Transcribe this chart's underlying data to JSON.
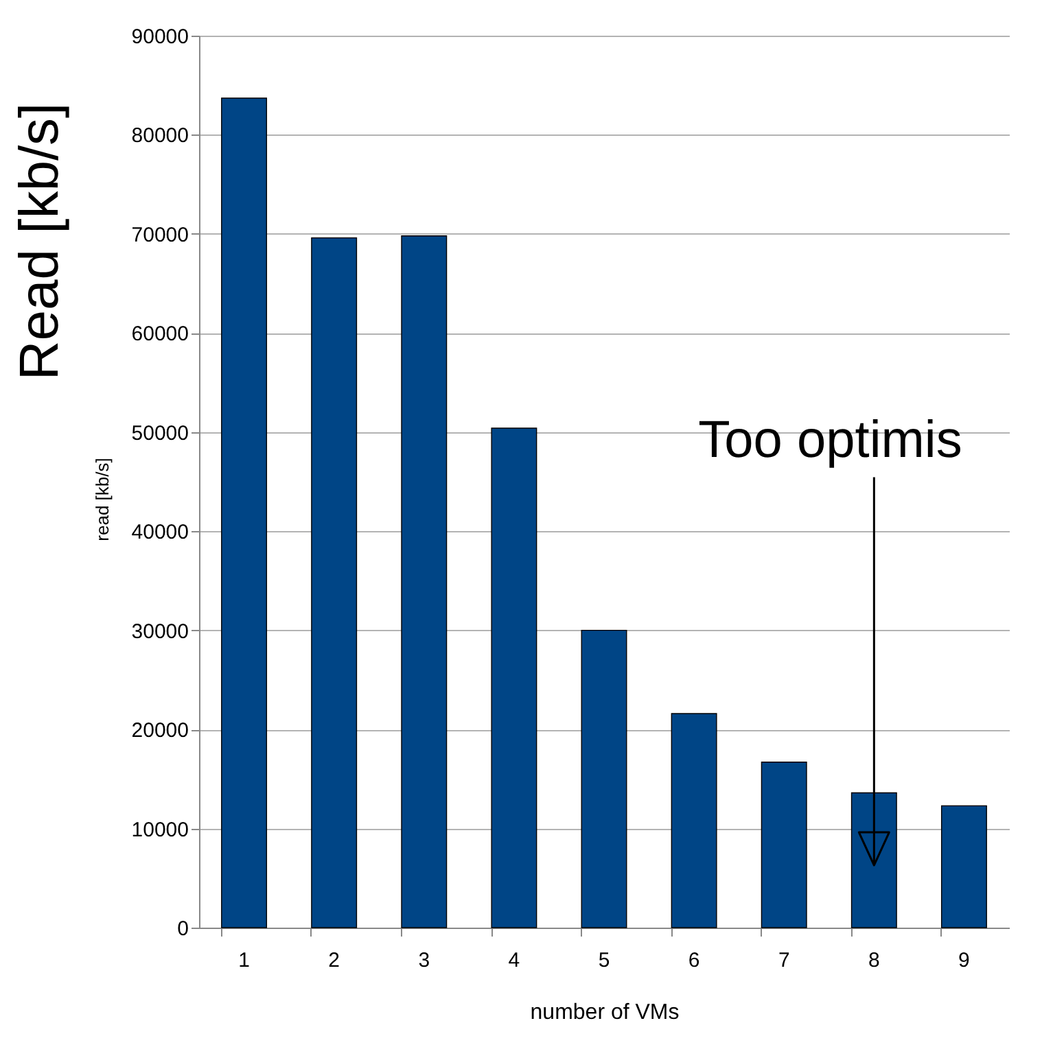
{
  "chart_data": {
    "type": "bar",
    "xlabel": "number of VMs",
    "ylabel": "Read [kb/s]",
    "categories": [
      "1",
      "2",
      "3",
      "4",
      "5",
      "6",
      "7",
      "8",
      "9"
    ],
    "values": [
      83700,
      69600,
      69800,
      50400,
      30000,
      21600,
      16700,
      13600,
      12300
    ],
    "color": "#004586",
    "ylim": [
      0,
      90000
    ],
    "yticks": [
      0,
      10000,
      20000,
      30000,
      40000,
      50000,
      60000,
      70000,
      80000,
      90000
    ],
    "grid": "y",
    "annotations": [
      "read [kb/s]",
      "Too optimis"
    ]
  }
}
